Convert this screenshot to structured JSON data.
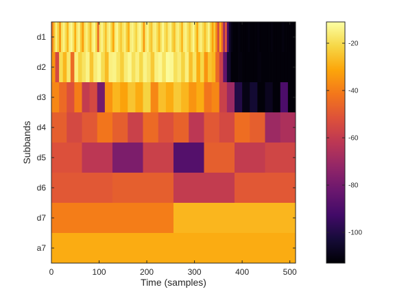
{
  "chart_data": {
    "type": "heatmap",
    "xlabel": "Time (samples)",
    "ylabel": "Subbands",
    "xlim": [
      0,
      512
    ],
    "xticks": [
      0,
      100,
      200,
      300,
      400,
      500
    ],
    "colormap": "inferno",
    "clim": [
      -113,
      -11
    ],
    "colorbar_ticks": [
      -20,
      -40,
      -60,
      -80,
      -100
    ],
    "rows": [
      {
        "label": "d1",
        "block_width": 4,
        "values": [
          -40,
          -25,
          -15,
          -22,
          -35,
          -18,
          -14,
          -20,
          -28,
          -16,
          -13,
          -19,
          -30,
          -17,
          -14,
          -24,
          -33,
          -18,
          -15,
          -20,
          -27,
          -16,
          -13,
          -21,
          -45,
          -18,
          -14,
          -19,
          -26,
          -17,
          -14,
          -22,
          -31,
          -16,
          -13,
          -20,
          -24,
          -18,
          -15,
          -23,
          -29,
          -16,
          -14,
          -18,
          -22,
          -15,
          -13,
          -19,
          -34,
          -17,
          -14,
          -21,
          -25,
          -16,
          -15,
          -20,
          -27,
          -18,
          -13,
          -19,
          -23,
          -16,
          -14,
          -22,
          -26,
          -17,
          -15,
          -20,
          -28,
          -16,
          -14,
          -19,
          -24,
          -18,
          -13,
          -21,
          -30,
          -17,
          -15,
          -20,
          -26,
          -19,
          -14,
          -22,
          -32,
          -24,
          -38,
          -55,
          -30,
          -45,
          -70,
          -50,
          -90,
          -105,
          -110,
          -112,
          -112,
          -112,
          -111,
          -112,
          -112,
          -112,
          -112,
          -111,
          -112,
          -112,
          -112,
          -112,
          -111,
          -112,
          -112,
          -112,
          -112,
          -112,
          -112,
          -111,
          -112,
          -112,
          -112,
          -112,
          -112,
          -111,
          -112,
          -112,
          -112,
          -112,
          -112,
          -112
        ]
      },
      {
        "label": "d2",
        "block_width": 8,
        "values": [
          -35,
          -55,
          -20,
          -28,
          -17,
          -45,
          -15,
          -22,
          -18,
          -14,
          -25,
          -16,
          -13,
          -20,
          -27,
          -15,
          -14,
          -18,
          -23,
          -16,
          -13,
          -19,
          -15,
          -21,
          -14,
          -17,
          -24,
          -15,
          -13,
          -18,
          -12,
          -13,
          -19,
          -16,
          -22,
          -15,
          -26,
          -18,
          -30,
          -21,
          -35,
          -25,
          -28,
          -45,
          -58,
          -85,
          -105,
          -112,
          -112,
          -111,
          -112,
          -112,
          -112,
          -112,
          -111,
          -112,
          -112,
          -112,
          -112,
          -112,
          -112,
          -112,
          -112,
          -112
        ]
      },
      {
        "label": "d3",
        "block_width": 16,
        "values": [
          -38,
          -45,
          -52,
          -40,
          -60,
          -55,
          -80,
          -35,
          -28,
          -32,
          -25,
          -30,
          -22,
          -38,
          -26,
          -30,
          -24,
          -28,
          -35,
          -30,
          -42,
          -38,
          -58,
          -70,
          -100,
          -110,
          -104,
          -112,
          -108,
          -112,
          -90,
          -112
        ]
      },
      {
        "label": "d4",
        "block_width": 32,
        "values": [
          -48,
          -55,
          -50,
          -42,
          -48,
          -58,
          -45,
          -52,
          -47,
          -62,
          -50,
          -55,
          -44,
          -48,
          -70,
          -66
        ]
      },
      {
        "label": "d5",
        "block_width": 64,
        "values": [
          -52,
          -62,
          -78,
          -58,
          -88,
          -48,
          -60,
          -56
        ]
      },
      {
        "label": "d6",
        "block_width": 128,
        "values": [
          -50,
          -48,
          -60,
          -50
        ]
      },
      {
        "label": "d7",
        "block_width": 256,
        "values": [
          -40,
          -28
        ]
      },
      {
        "label": "a7",
        "block_width": 512,
        "values": [
          -30
        ]
      }
    ]
  }
}
